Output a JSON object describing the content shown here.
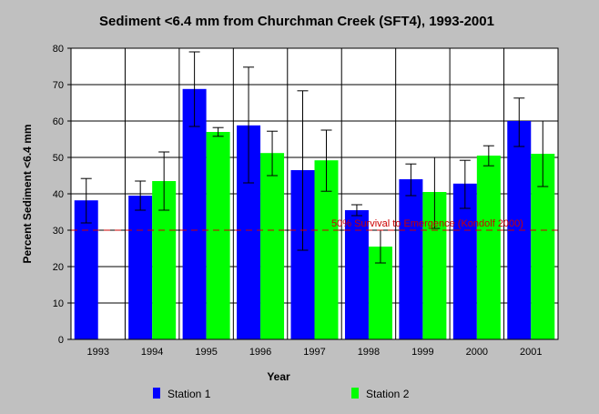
{
  "chart_data": {
    "type": "bar",
    "title": "Sediment <6.4 mm from Churchman Creek (SFT4), 1993-2001",
    "xlabel": "Year",
    "ylabel": "Percent Sediment <6.4 mm",
    "ylim": [
      0,
      80
    ],
    "yticks": [
      0,
      10,
      20,
      30,
      40,
      50,
      60,
      70,
      80
    ],
    "categories": [
      "1993",
      "1994",
      "1995",
      "1996",
      "1997",
      "1998",
      "1999",
      "2000",
      "2001"
    ],
    "series": [
      {
        "name": "Station 1",
        "color": "#0000ff",
        "values": [
          38.2,
          39.5,
          68.8,
          58.8,
          46.5,
          35.5,
          44.0,
          42.8,
          60.0
        ],
        "err_low": [
          32.0,
          35.5,
          58.5,
          43.0,
          24.5,
          34.0,
          39.5,
          36.0,
          53.0
        ],
        "err_high": [
          44.2,
          43.5,
          79.0,
          74.8,
          68.3,
          37.0,
          48.2,
          49.2,
          66.3
        ]
      },
      {
        "name": "Station 2",
        "color": "#00ff00",
        "values": [
          null,
          43.5,
          57.0,
          51.2,
          49.2,
          25.5,
          40.5,
          50.5,
          51.0
        ],
        "err_low": [
          null,
          35.5,
          55.8,
          45.0,
          40.7,
          21.0,
          30.5,
          47.7,
          42.0
        ],
        "err_high": [
          null,
          51.5,
          58.2,
          57.2,
          57.5,
          30.0,
          50.0,
          53.2,
          60.0
        ]
      }
    ],
    "reference_line": {
      "value": 30,
      "label": "50% Survival to Emergence (Kondolf 2000)",
      "color": "#cc0000"
    },
    "legend_position": "bottom"
  }
}
